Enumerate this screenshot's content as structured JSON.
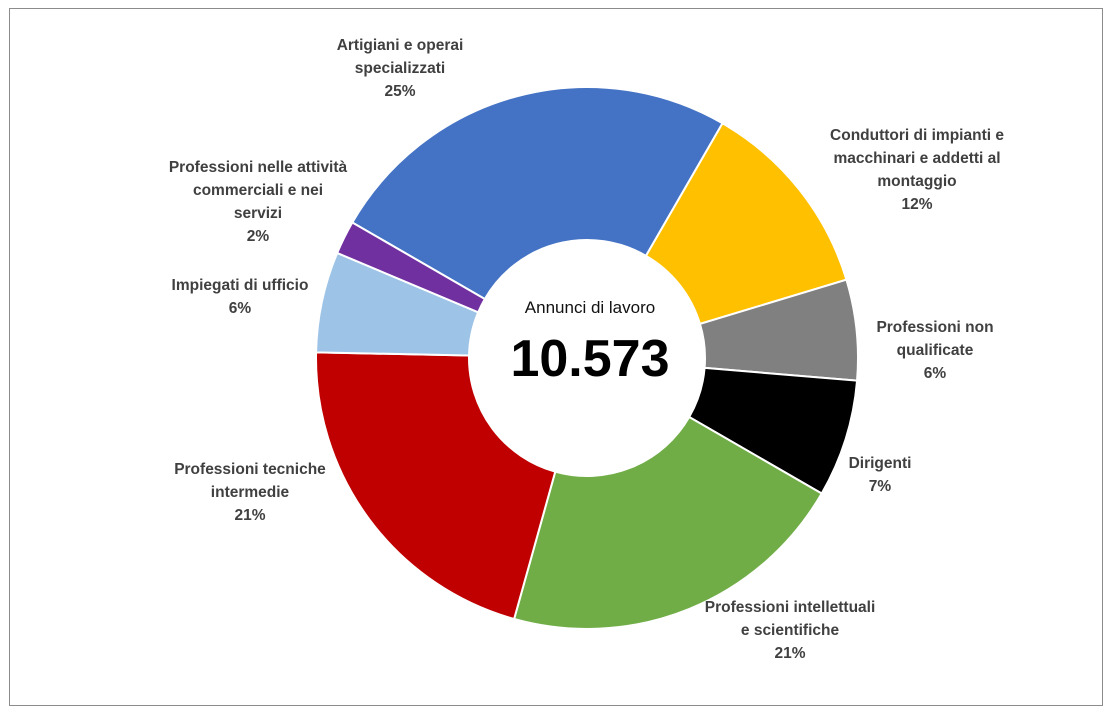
{
  "chart_data": {
    "type": "pie",
    "variant": "donut",
    "center_label": "Annunci di lavoro",
    "center_value": "10.573",
    "legend": "none",
    "slices": [
      {
        "category_lines": [
          "Artigiani e operai",
          "specializzati"
        ],
        "value": 25,
        "percent_label": "25%",
        "color": "#4472C4"
      },
      {
        "category_lines": [
          "Conduttori di impianti e",
          "macchinari e addetti al",
          "montaggio"
        ],
        "value": 12,
        "percent_label": "12%",
        "color": "#FFC000"
      },
      {
        "category_lines": [
          "Professioni non",
          "qualificate"
        ],
        "value": 6,
        "percent_label": "6%",
        "color": "#808080"
      },
      {
        "category_lines": [
          "Dirigenti"
        ],
        "value": 7,
        "percent_label": "7%",
        "color": "#000000"
      },
      {
        "category_lines": [
          "Professioni intellettuali",
          "e scientifiche"
        ],
        "value": 21,
        "percent_label": "21%",
        "color": "#70AD47"
      },
      {
        "category_lines": [
          "Professioni tecniche",
          "intermedie"
        ],
        "value": 21,
        "percent_label": "21%",
        "color": "#C00000"
      },
      {
        "category_lines": [
          "Impiegati di ufficio"
        ],
        "value": 6,
        "percent_label": "6%",
        "color": "#9DC3E6"
      },
      {
        "category_lines": [
          "Professioni nelle attività",
          "commerciali e nei",
          "servizi"
        ],
        "value": 2,
        "percent_label": "2%",
        "color": "#7030A0"
      }
    ]
  }
}
